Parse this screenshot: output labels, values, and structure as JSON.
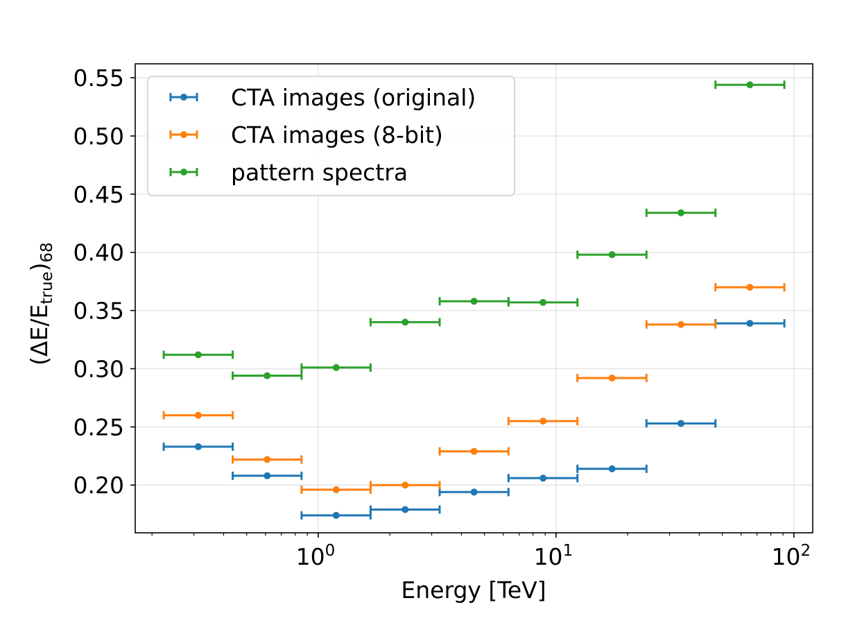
{
  "chart_data": {
    "type": "scatter",
    "title": "",
    "xlabel": "Energy [TeV]",
    "ylabel": {
      "open": "(ΔE/E",
      "sub1": "true",
      "close": ")",
      "sub2": "68"
    },
    "xscale": "log",
    "xlim": [
      0.17,
      120
    ],
    "ylim": [
      0.159,
      0.562
    ],
    "grid": true,
    "legend_position": "upper-left",
    "x_ticks": [
      {
        "value": 1,
        "base": "10",
        "exp": "0"
      },
      {
        "value": 10,
        "base": "10",
        "exp": "1"
      },
      {
        "value": 100,
        "base": "10",
        "exp": "2"
      }
    ],
    "y_ticks": [
      {
        "value": 0.2,
        "label": "0.20"
      },
      {
        "value": 0.25,
        "label": "0.25"
      },
      {
        "value": 0.3,
        "label": "0.30"
      },
      {
        "value": 0.35,
        "label": "0.35"
      },
      {
        "value": 0.4,
        "label": "0.40"
      },
      {
        "value": 0.45,
        "label": "0.45"
      },
      {
        "value": 0.5,
        "label": "0.50"
      },
      {
        "value": 0.55,
        "label": "0.55"
      }
    ],
    "bin_edges": [
      0.224,
      0.437,
      0.851,
      1.66,
      3.24,
      6.31,
      12.3,
      24.0,
      46.8,
      91.2
    ],
    "bin_centers": [
      0.313,
      0.61,
      1.19,
      2.32,
      4.52,
      8.82,
      17.2,
      33.5,
      65.3
    ],
    "series": [
      {
        "name": "CTA images (original)",
        "color": "#1f77b4",
        "values": [
          0.233,
          0.208,
          0.174,
          0.179,
          0.194,
          0.206,
          0.214,
          0.253,
          0.339
        ]
      },
      {
        "name": "CTA images (8-bit)",
        "color": "#ff7f0e",
        "values": [
          0.26,
          0.222,
          0.196,
          0.2,
          0.229,
          0.255,
          0.292,
          0.338,
          0.37
        ]
      },
      {
        "name": "pattern spectra",
        "color": "#2ca02c",
        "values": [
          0.312,
          0.294,
          0.301,
          0.34,
          0.358,
          0.357,
          0.398,
          0.434,
          0.544
        ]
      }
    ]
  }
}
